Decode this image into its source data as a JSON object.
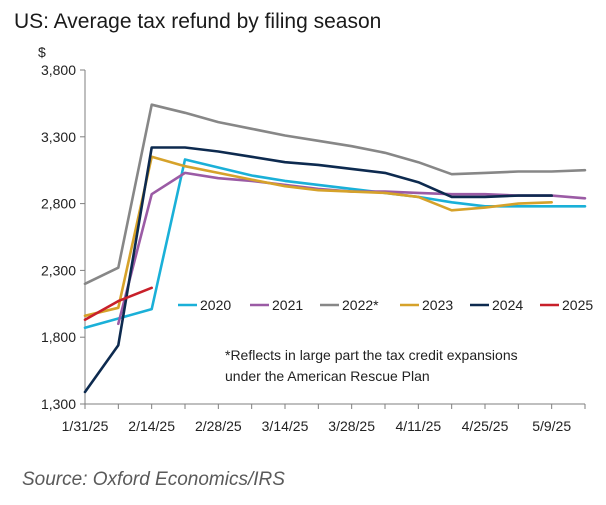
{
  "chart_data": {
    "type": "line",
    "title": "US: Average tax refund by filing season",
    "ylabel": "$",
    "ylim": [
      1300,
      3800
    ],
    "yticks": [
      1300,
      1800,
      2300,
      2800,
      3300,
      3800
    ],
    "ytick_labels": [
      "1,300",
      "1,800",
      "2,300",
      "2,800",
      "3,300",
      "3,800"
    ],
    "xtick_labels": [
      "1/31/25",
      "2/14/25",
      "2/28/25",
      "3/14/25",
      "3/28/25",
      "4/11/25",
      "4/25/25",
      "5/9/25"
    ],
    "xtick_positions": [
      0,
      2,
      4,
      6,
      8,
      10,
      12,
      14
    ],
    "x_range": [
      0,
      15
    ],
    "grid": false,
    "legend_position": "middle-right",
    "series": [
      {
        "name": "2020",
        "color": "#1ab0d8",
        "x": [
          0,
          1,
          2,
          3,
          4,
          5,
          6,
          7,
          8,
          9,
          10,
          11,
          12,
          13,
          14,
          15
        ],
        "values": [
          1870,
          1940,
          2010,
          3130,
          3070,
          3010,
          2970,
          2940,
          2910,
          2880,
          2850,
          2810,
          2780,
          2780,
          2780,
          2780
        ]
      },
      {
        "name": "2021",
        "color": "#9b5ba5",
        "x": [
          1,
          2,
          3,
          4,
          5,
          6,
          7,
          8,
          9,
          10,
          11,
          12,
          13,
          14,
          15
        ],
        "values": [
          1900,
          2870,
          3030,
          2990,
          2970,
          2940,
          2910,
          2890,
          2890,
          2880,
          2870,
          2870,
          2860,
          2860,
          2840
        ]
      },
      {
        "name": "2022*",
        "color": "#878787",
        "x": [
          0,
          1,
          2,
          3,
          4,
          5,
          6,
          7,
          8,
          9,
          10,
          11,
          12,
          13,
          14,
          15
        ],
        "values": [
          2200,
          2320,
          3540,
          3480,
          3410,
          3360,
          3310,
          3270,
          3230,
          3180,
          3110,
          3020,
          3030,
          3040,
          3040,
          3050
        ]
      },
      {
        "name": "2023",
        "color": "#d6a22a",
        "x": [
          0,
          1,
          2,
          3,
          4,
          5,
          6,
          7,
          8,
          9,
          10,
          11,
          12,
          13,
          14
        ],
        "values": [
          1960,
          2020,
          3150,
          3080,
          3030,
          2980,
          2930,
          2900,
          2890,
          2880,
          2850,
          2750,
          2770,
          2800,
          2810
        ]
      },
      {
        "name": "2024",
        "color": "#0d2a4f",
        "x": [
          0,
          1,
          2,
          3,
          4,
          5,
          6,
          7,
          8,
          9,
          10,
          11,
          12,
          13,
          14
        ],
        "values": [
          1390,
          1740,
          3220,
          3220,
          3190,
          3150,
          3110,
          3090,
          3060,
          3030,
          2960,
          2850,
          2850,
          2860,
          2860
        ]
      },
      {
        "name": "2025",
        "color": "#c8202a",
        "x": [
          0,
          1,
          2
        ],
        "values": [
          1930,
          2070,
          2170
        ]
      }
    ],
    "annotation": [
      "*Reflects in large part the tax credit expansions",
      "under the American Rescue Plan"
    ]
  },
  "source": "Source: Oxford Economics/IRS"
}
